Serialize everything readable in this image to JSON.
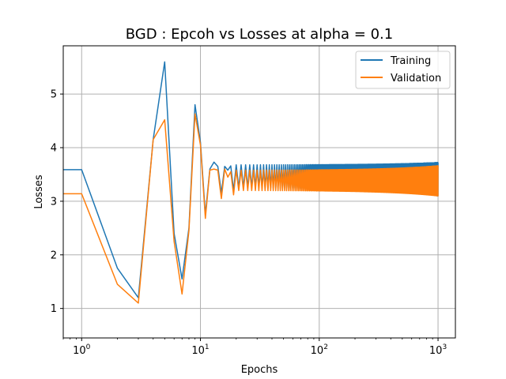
{
  "chart_data": {
    "type": "line",
    "title": "BGD : Epcoh vs Losses at alpha = 0.1",
    "xlabel": "Epochs",
    "ylabel": "Losses",
    "xscale": "log",
    "xlim": [
      0.7,
      1400
    ],
    "ylim": [
      0.45,
      5.9
    ],
    "grid": true,
    "legend_position": "top-right",
    "x_ticks": [
      {
        "value": 1,
        "base": "10",
        "exp": "0"
      },
      {
        "value": 10,
        "base": "10",
        "exp": "1"
      },
      {
        "value": 100,
        "base": "10",
        "exp": "2"
      },
      {
        "value": 1000,
        "base": "10",
        "exp": "3"
      }
    ],
    "y_ticks": [
      1,
      2,
      3,
      4,
      5
    ],
    "series": [
      {
        "name": "Training",
        "color": "#1f77b4",
        "points": [
          [
            0,
            3.59
          ],
          [
            1,
            3.59
          ],
          [
            2,
            1.75
          ],
          [
            3,
            1.2
          ],
          [
            4,
            4.15
          ],
          [
            5,
            5.6
          ],
          [
            6,
            2.4
          ],
          [
            7,
            1.55
          ],
          [
            8,
            2.5
          ],
          [
            9,
            4.8
          ],
          [
            10,
            4.1
          ],
          [
            11,
            2.75
          ],
          [
            12,
            3.6
          ],
          [
            13,
            3.73
          ],
          [
            14,
            3.65
          ],
          [
            15,
            3.15
          ],
          [
            16,
            3.65
          ],
          [
            17,
            3.58
          ],
          [
            18,
            3.66
          ],
          [
            19,
            3.2
          ]
        ],
        "tail": {
          "start": 20,
          "end": 1000,
          "low_start": 3.25,
          "low_end": 3.1,
          "high_start": 3.68,
          "high_end": 3.72
        }
      },
      {
        "name": "Validation",
        "color": "#ff7f0e",
        "points": [
          [
            0,
            3.14
          ],
          [
            1,
            3.14
          ],
          [
            2,
            1.45
          ],
          [
            3,
            1.1
          ],
          [
            4,
            4.15
          ],
          [
            5,
            4.52
          ],
          [
            6,
            2.25
          ],
          [
            7,
            1.27
          ],
          [
            8,
            2.45
          ],
          [
            9,
            4.63
          ],
          [
            10,
            4.05
          ],
          [
            11,
            2.68
          ],
          [
            12,
            3.58
          ],
          [
            13,
            3.6
          ],
          [
            14,
            3.58
          ],
          [
            15,
            3.05
          ],
          [
            16,
            3.6
          ],
          [
            17,
            3.45
          ],
          [
            18,
            3.55
          ],
          [
            19,
            3.12
          ]
        ],
        "tail": {
          "start": 20,
          "end": 1000,
          "low_start": 3.2,
          "low_end": 3.1,
          "high_start": 3.58,
          "high_end": 3.66
        }
      }
    ]
  }
}
